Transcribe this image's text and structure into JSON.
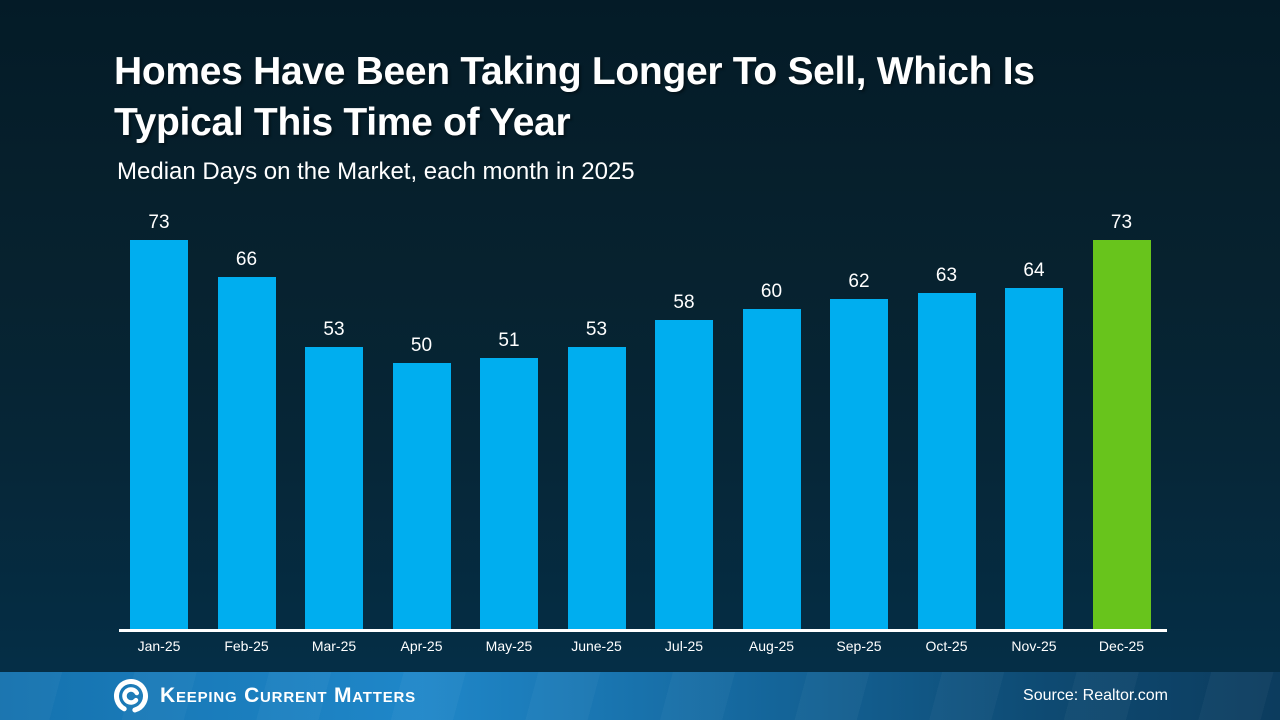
{
  "slide": {
    "title_line1": "Homes Have Been Taking Longer To Sell, Which Is",
    "title_line2": "Typical This Time of Year",
    "subtitle": "Median Days on the Market, each month in 2025",
    "source": "Source: Realtor.com",
    "brand_name": "Keeping Current Matters"
  },
  "colors": {
    "background_top": "#041b27",
    "background_bottom": "#05304a",
    "bar_blue": "#00AEEF",
    "bar_green": "#68C41C",
    "axis_white": "#FFFFFF",
    "footer_blue_left": "#1F87C9",
    "footer_blue_right": "#0C3C5E",
    "text_white": "#FFFFFF"
  },
  "chart_data": {
    "type": "bar",
    "title": "Homes Have Been Taking Longer To Sell, Which Is Typical This Time of Year",
    "subtitle": "Median Days on the Market, each month in 2025",
    "categories": [
      "Jan-25",
      "Feb-25",
      "Mar-25",
      "Apr-25",
      "May-25",
      "June-25",
      "Jul-25",
      "Aug-25",
      "Sep-25",
      "Oct-25",
      "Nov-25",
      "Dec-25"
    ],
    "values": [
      73,
      66,
      53,
      50,
      51,
      53,
      58,
      60,
      62,
      63,
      64,
      73
    ],
    "xlabel": "",
    "ylabel": "Median Days on the Market",
    "ylim": [
      0,
      80
    ],
    "grid": false,
    "legend": false,
    "value_labels_shown": true,
    "bar_color": "#00AEEF",
    "highlight_color": "#68C41C",
    "highlight_index": 11,
    "source": "Realtor.com"
  }
}
